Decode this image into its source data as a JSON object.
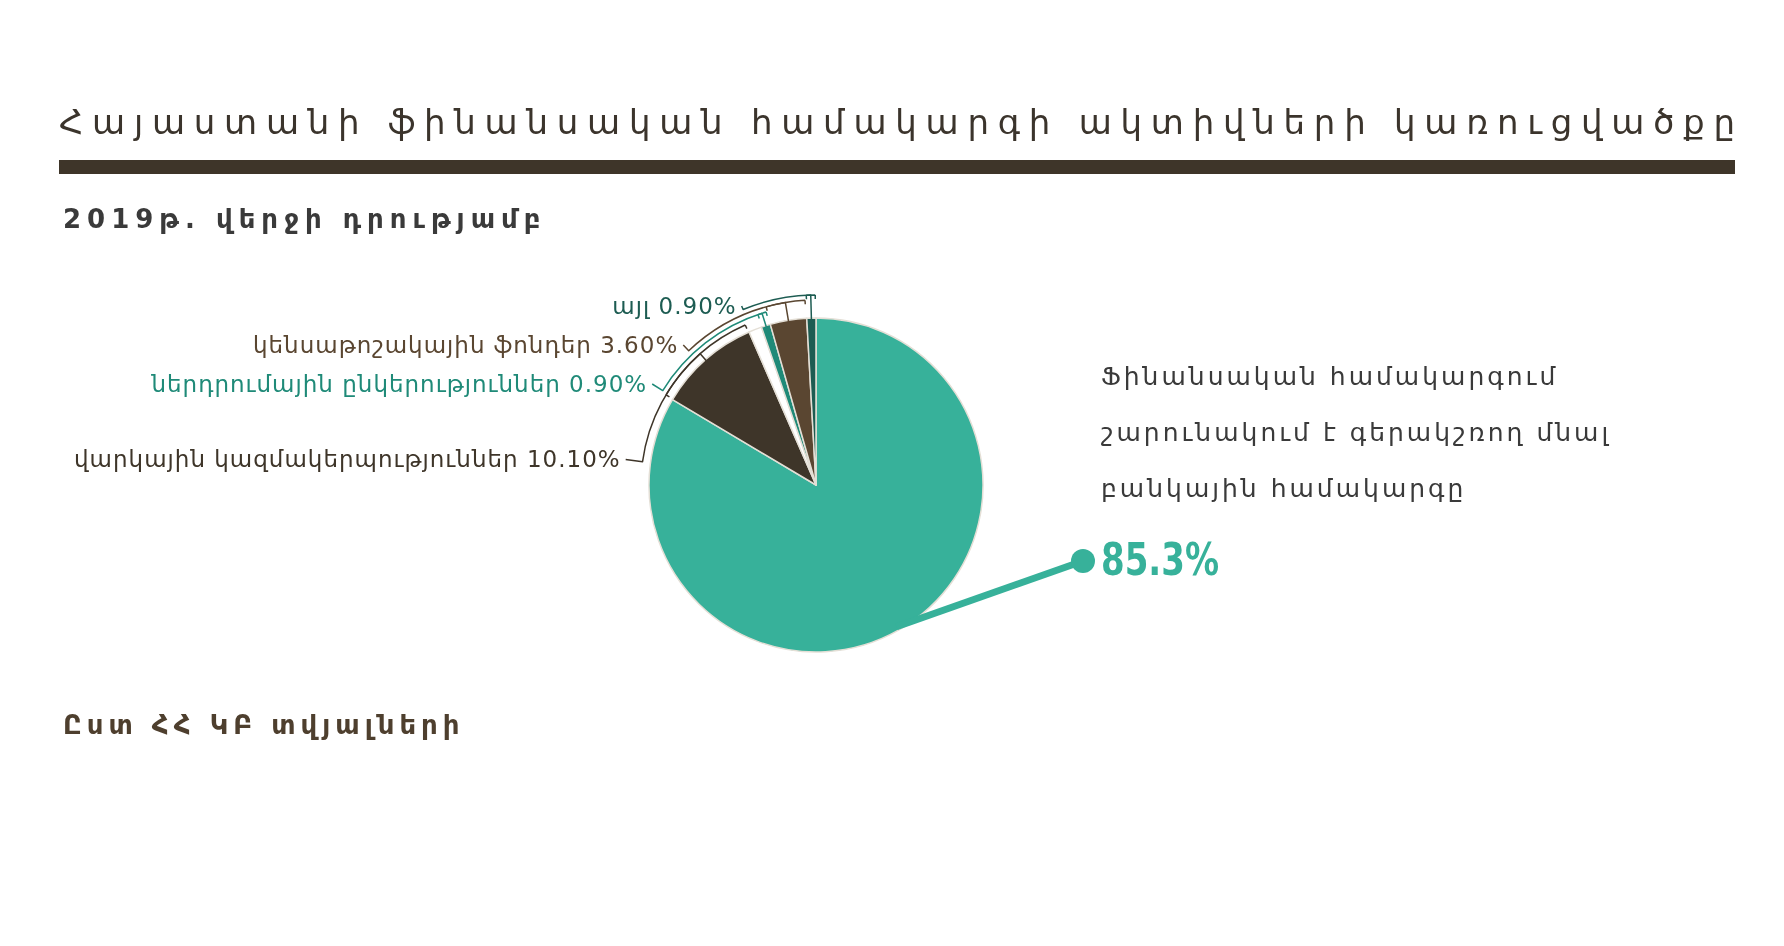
{
  "chart_data": {
    "type": "pie",
    "title": "Հայաստանի ֆինանսական համակարգի ակտիվների կառուցվածքը",
    "subtitle": "2019թ. վերջի դրությամբ",
    "categories": [
      null,
      "վարկային կազմակերպություններ",
      null,
      "ներդրումային ընկերություններ",
      "կենսաթոշակային ֆոնդեր",
      "այլ"
    ],
    "values": [
      85.3,
      10.1,
      1.3,
      0.9,
      3.6,
      0.9
    ],
    "colors": [
      "#37b19a",
      "#3e3529",
      "#ffffff",
      "#1f8a78",
      "#5a4631",
      "#1d5c52"
    ],
    "value_labels": [
      "85.3%",
      "10.10%",
      null,
      "0.90%",
      "3.60%",
      "0.90%"
    ],
    "annotations": [
      "Ֆինանսական համակարգում շարունակում է գերակշռող մնալ բանկային համակարգը",
      "Ըստ ՀՀ ԿԲ տվյալների"
    ]
  }
}
